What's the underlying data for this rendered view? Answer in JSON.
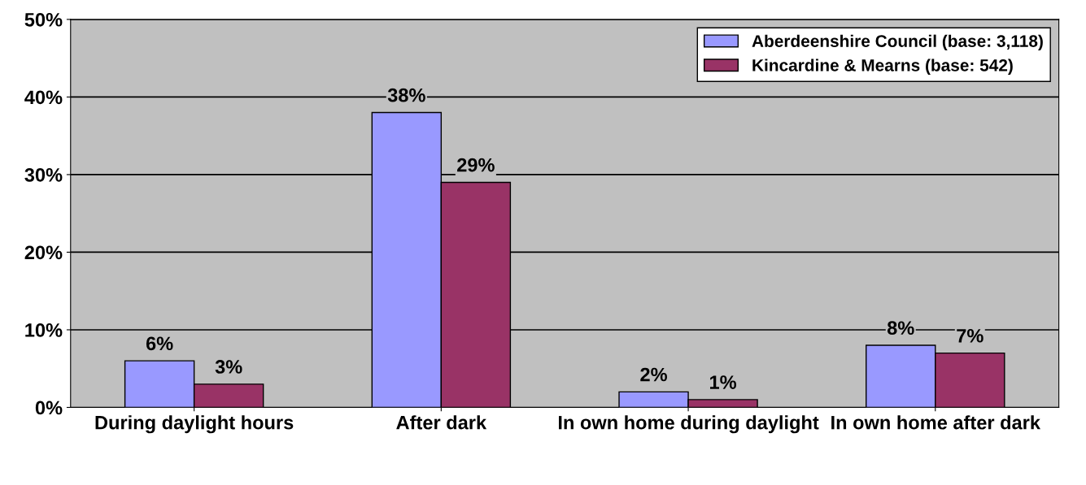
{
  "chart_data": {
    "type": "bar",
    "categories": [
      "During daylight hours",
      "After dark",
      "In own home during daylight",
      "In own home after dark"
    ],
    "series": [
      {
        "name": "Aberdeenshire Council (base: 3,118)",
        "color": "#9999ff",
        "values": [
          6,
          38,
          2,
          8
        ],
        "value_labels": [
          "6%",
          "38%",
          "2%",
          "8%"
        ]
      },
      {
        "name": "Kincardine & Mearns (base: 542)",
        "color": "#993366",
        "values": [
          3,
          29,
          1,
          7
        ],
        "value_labels": [
          "3%",
          "29%",
          "1%",
          "7%"
        ]
      }
    ],
    "ylim": [
      0,
      50
    ],
    "yticks": [
      {
        "value": 0,
        "label": "0%"
      },
      {
        "value": 10,
        "label": "10%"
      },
      {
        "value": 20,
        "label": "20%"
      },
      {
        "value": 30,
        "label": "30%"
      },
      {
        "value": 40,
        "label": "40%"
      },
      {
        "value": 50,
        "label": "50%"
      }
    ],
    "grid": "y",
    "legend": "top right"
  }
}
